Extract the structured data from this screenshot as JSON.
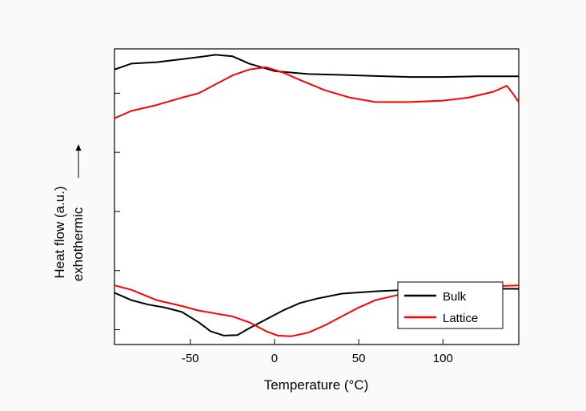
{
  "chart_data": {
    "type": "line",
    "xlabel": "Temperature (°C)",
    "ylabel_line1": "Heat flow (a.u.)",
    "ylabel_line2": "exhothermic",
    "xlim": [
      -95,
      145
    ],
    "ylim": [
      0,
      10
    ],
    "x_ticks": [
      -50,
      0,
      50,
      100
    ],
    "x_tick_labels": [
      "-50",
      "0",
      "50",
      "100"
    ],
    "y_ticks": [
      0.5,
      2.5,
      4.5,
      6.5,
      8.5
    ],
    "legend_position": "bottom-right",
    "colors": {
      "Bulk": "#000000",
      "Lattice": "#ff0000"
    },
    "series": [
      {
        "name": "Bulk",
        "color": "#000000",
        "segments": [
          [
            [
              -95,
              9.3
            ],
            [
              -85,
              9.5
            ],
            [
              -70,
              9.55
            ],
            [
              -55,
              9.65
            ],
            [
              -45,
              9.72
            ],
            [
              -35,
              9.8
            ],
            [
              -25,
              9.75
            ],
            [
              -15,
              9.5
            ],
            [
              0,
              9.25
            ],
            [
              20,
              9.15
            ],
            [
              40,
              9.12
            ],
            [
              60,
              9.08
            ],
            [
              80,
              9.05
            ],
            [
              100,
              9.05
            ],
            [
              120,
              9.07
            ],
            [
              145,
              9.07
            ]
          ],
          [
            [
              -95,
              1.75
            ],
            [
              -85,
              1.5
            ],
            [
              -75,
              1.35
            ],
            [
              -65,
              1.25
            ],
            [
              -55,
              1.1
            ],
            [
              -45,
              0.75
            ],
            [
              -38,
              0.45
            ],
            [
              -30,
              0.3
            ],
            [
              -22,
              0.32
            ],
            [
              -15,
              0.55
            ],
            [
              -5,
              0.85
            ],
            [
              5,
              1.15
            ],
            [
              15,
              1.4
            ],
            [
              25,
              1.55
            ],
            [
              40,
              1.72
            ],
            [
              60,
              1.8
            ],
            [
              80,
              1.85
            ],
            [
              100,
              1.88
            ],
            [
              120,
              1.9
            ],
            [
              145,
              1.88
            ]
          ]
        ]
      },
      {
        "name": "Lattice",
        "color": "#ff0000",
        "segments": [
          [
            [
              -95,
              7.65
            ],
            [
              -85,
              7.9
            ],
            [
              -70,
              8.1
            ],
            [
              -55,
              8.35
            ],
            [
              -45,
              8.5
            ],
            [
              -35,
              8.8
            ],
            [
              -25,
              9.1
            ],
            [
              -15,
              9.3
            ],
            [
              -5,
              9.38
            ],
            [
              5,
              9.2
            ],
            [
              15,
              8.95
            ],
            [
              30,
              8.6
            ],
            [
              45,
              8.35
            ],
            [
              60,
              8.2
            ],
            [
              80,
              8.2
            ],
            [
              100,
              8.25
            ],
            [
              115,
              8.35
            ],
            [
              130,
              8.55
            ],
            [
              138,
              8.75
            ],
            [
              142,
              8.45
            ],
            [
              145,
              8.2
            ]
          ],
          [
            [
              -95,
              2.0
            ],
            [
              -85,
              1.85
            ],
            [
              -70,
              1.5
            ],
            [
              -55,
              1.3
            ],
            [
              -45,
              1.15
            ],
            [
              -35,
              1.05
            ],
            [
              -25,
              0.95
            ],
            [
              -15,
              0.75
            ],
            [
              -5,
              0.45
            ],
            [
              2,
              0.3
            ],
            [
              10,
              0.28
            ],
            [
              20,
              0.4
            ],
            [
              30,
              0.65
            ],
            [
              40,
              0.95
            ],
            [
              50,
              1.25
            ],
            [
              60,
              1.5
            ],
            [
              75,
              1.7
            ],
            [
              90,
              1.82
            ],
            [
              105,
              1.9
            ],
            [
              120,
              1.95
            ],
            [
              135,
              1.98
            ],
            [
              145,
              2.0
            ]
          ]
        ]
      }
    ]
  }
}
